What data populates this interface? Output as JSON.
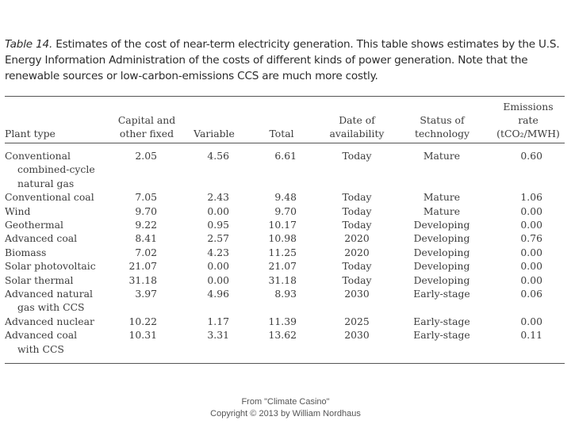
{
  "caption": {
    "label": "Table 14.",
    "text": " Estimates of the cost of near-term electricity generation. This table shows estimates by the U.S. Energy Information Administration of the costs of different kinds of power generation. Note that the renewable sources or low-carbon-emissions CCS are much more costly."
  },
  "headers": {
    "plant_type": "Plant type",
    "capital_l1": "Capital and",
    "capital_l2": "other fixed",
    "variable": "Variable",
    "total": "Total",
    "date_l1": "Date of",
    "date_l2": "availability",
    "status_l1": "Status of",
    "status_l2": "technology",
    "emis_l1": "Emissions",
    "emis_l2": "rate",
    "emis_l3": "(tCO₂/MWH)"
  },
  "rows": [
    {
      "plant": [
        "Conventional",
        "combined-cycle",
        "natural gas"
      ],
      "capital": "2.05",
      "variable": "4.56",
      "total": "6.61",
      "date": "Today",
      "status": "Mature",
      "emissions": "0.60"
    },
    {
      "plant": [
        "Conventional coal"
      ],
      "capital": "7.05",
      "variable": "2.43",
      "total": "9.48",
      "date": "Today",
      "status": "Mature",
      "emissions": "1.06"
    },
    {
      "plant": [
        "Wind"
      ],
      "capital": "9.70",
      "variable": "0.00",
      "total": "9.70",
      "date": "Today",
      "status": "Mature",
      "emissions": "0.00"
    },
    {
      "plant": [
        "Geothermal"
      ],
      "capital": "9.22",
      "variable": "0.95",
      "total": "10.17",
      "date": "Today",
      "status": "Developing",
      "emissions": "0.00"
    },
    {
      "plant": [
        "Advanced coal"
      ],
      "capital": "8.41",
      "variable": "2.57",
      "total": "10.98",
      "date": "2020",
      "status": "Developing",
      "emissions": "0.76"
    },
    {
      "plant": [
        "Biomass"
      ],
      "capital": "7.02",
      "variable": "4.23",
      "total": "11.25",
      "date": "2020",
      "status": "Developing",
      "emissions": "0.00"
    },
    {
      "plant": [
        "Solar photovoltaic"
      ],
      "capital": "21.07",
      "variable": "0.00",
      "total": "21.07",
      "date": "Today",
      "status": "Developing",
      "emissions": "0.00"
    },
    {
      "plant": [
        "Solar thermal"
      ],
      "capital": "31.18",
      "variable": "0.00",
      "total": "31.18",
      "date": "Today",
      "status": "Developing",
      "emissions": "0.00"
    },
    {
      "plant": [
        "Advanced natural",
        "gas with CCS"
      ],
      "capital": "3.97",
      "variable": "4.96",
      "total": "8.93",
      "date": "2030",
      "status": "Early-stage",
      "emissions": "0.06"
    },
    {
      "plant": [
        "Advanced nuclear"
      ],
      "capital": "10.22",
      "variable": "1.17",
      "total": "11.39",
      "date": "2025",
      "status": "Early-stage",
      "emissions": "0.00"
    },
    {
      "plant": [
        "Advanced coal",
        "with CCS"
      ],
      "capital": "10.31",
      "variable": "3.31",
      "total": "13.62",
      "date": "2030",
      "status": "Early-stage",
      "emissions": "0.11"
    }
  ],
  "footer": {
    "line1": "From \"Climate Casino\"",
    "line2": "Copyright © 2013 by William Nordhaus"
  }
}
